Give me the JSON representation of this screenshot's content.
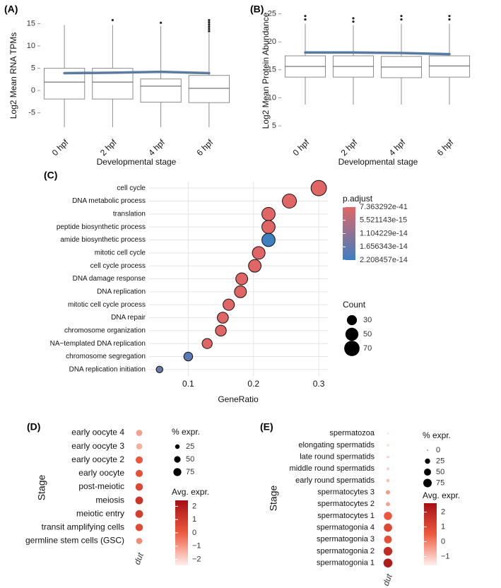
{
  "chart_data": [
    {
      "type": "box",
      "panel_label": "(A)",
      "x_label": "Developmental stage",
      "y_label": "Log2 Mean RNA TPMs",
      "categories": [
        "0 hpf",
        "2 hpf",
        "4 hpf",
        "6 hpf"
      ],
      "boxes": [
        {
          "whisker_low": -8.2,
          "q1": -1.9,
          "median": 1.9,
          "q3": 5.0,
          "whisker_high": 14.7,
          "outliers": []
        },
        {
          "whisker_low": -8.2,
          "q1": -1.9,
          "median": 1.9,
          "q3": 5.0,
          "whisker_high": 14.7,
          "outliers": [
            15.8
          ]
        },
        {
          "whisker_low": -8.2,
          "q1": -2.6,
          "median": 1.0,
          "q3": 2.6,
          "whisker_high": 14.5,
          "outliers": [
            15.2
          ]
        },
        {
          "whisker_low": -8.2,
          "q1": -2.7,
          "median": 0.5,
          "q3": 3.4,
          "whisker_high": 12.9,
          "outliers": [
            13.3,
            13.8,
            14.3,
            14.8,
            15.3,
            15.8
          ]
        }
      ],
      "box_stroke": "#8c8c8c",
      "trend": {
        "values": [
          3.9,
          4.0,
          4.2,
          3.9
        ],
        "color": "#5b7ba1"
      },
      "ylim": [
        -9.8,
        16.5
      ],
      "yticks": [
        -5,
        0,
        5,
        10,
        15
      ]
    },
    {
      "type": "box",
      "panel_label": "(B)",
      "x_label": "Developmental stage",
      "y_label": "Log2 Mean Protein Abundance",
      "categories": [
        "0 hpf",
        "2 hpf",
        "4 hpf",
        "6 hpf"
      ],
      "boxes": [
        {
          "whisker_low": 8.8,
          "q1": 13.7,
          "median": 15.6,
          "q3": 17.5,
          "whisker_high": 23.2,
          "outliers": [
            24.0,
            24.6
          ]
        },
        {
          "whisker_low": 8.8,
          "q1": 13.7,
          "median": 15.6,
          "q3": 17.5,
          "whisker_high": 23.0,
          "outliers": [
            23.6,
            24.2
          ]
        },
        {
          "whisker_low": 8.8,
          "q1": 13.6,
          "median": 15.5,
          "q3": 17.4,
          "whisker_high": 23.2,
          "outliers": [
            24.0,
            24.6
          ]
        },
        {
          "whisker_low": 8.8,
          "q1": 13.7,
          "median": 15.7,
          "q3": 17.5,
          "whisker_high": 23.2,
          "outliers": [
            24.0,
            24.6
          ]
        }
      ],
      "box_stroke": "#8c8c8c",
      "trend": {
        "values": [
          18.1,
          18.1,
          18.0,
          17.8
        ],
        "color": "#587ba3"
      },
      "ylim": [
        3.5,
        26.2
      ],
      "yticks": [
        5,
        10,
        15,
        20,
        25
      ]
    },
    {
      "type": "dotplot",
      "panel_label": "(C)",
      "x_label": "GeneRatio",
      "categories": [
        "cell cycle",
        "DNA metabolic process",
        "translation",
        "peptide biosynthetic process",
        "amide biosynthetic process",
        "mitotic cell cycle",
        "cell cycle process",
        "DNA damage response",
        "DNA replication",
        "mitotic cell cycle process",
        "DNA repair",
        "chromosome organization",
        "NA−templated DNA replication",
        "chromosome segregation",
        "DNA replication initiation"
      ],
      "x": [
        0.3,
        0.255,
        0.223,
        0.223,
        0.223,
        0.208,
        0.202,
        0.182,
        0.18,
        0.162,
        0.153,
        0.15,
        0.129,
        0.1,
        0.056
      ],
      "count": [
        70,
        59,
        52,
        52,
        52,
        48,
        47,
        42,
        42,
        38,
        36,
        35,
        30,
        23,
        13
      ],
      "p_adjust": [
        1e-20,
        1e-20,
        1e-20,
        1e-20,
        2.19e-14,
        1e-20,
        1e-20,
        1e-20,
        1e-20,
        1e-20,
        1e-20,
        1e-20,
        1e-20,
        1.85e-14,
        1.6e-14
      ],
      "xlim": [
        0.04,
        0.314
      ],
      "xticks": [
        0.1,
        0.2,
        0.3
      ],
      "grid": true,
      "colorbar": {
        "title": "p.adjust",
        "lim": [
          7.363292e-41,
          2.208457e-14
        ],
        "ticks": [
          7.363292e-41,
          5.521143e-15,
          1.104229e-14,
          1.656343e-14,
          2.208457e-14
        ],
        "colors": [
          "#e06666",
          "#3d7fc1"
        ]
      },
      "size_legend": {
        "title": "Count",
        "values": [
          30,
          50,
          70
        ]
      }
    },
    {
      "type": "expression_dot",
      "panel_label": "(D)",
      "y_label": "Stage",
      "x_categories": [
        "dut"
      ],
      "categories": [
        "early oocyte 4",
        "early oocyte 3",
        "early oocyte 2",
        "early oocyte",
        "post-meiotic",
        "meiosis",
        "meiotic entry",
        "transit amplifying cells",
        "germline stem cells (GSC)"
      ],
      "pct_expr": [
        45,
        45,
        60,
        60,
        65,
        70,
        70,
        65,
        45
      ],
      "avg_expr": [
        -1.1,
        -1.4,
        0.1,
        0.3,
        0.6,
        1.2,
        0.9,
        0.5,
        -0.8
      ],
      "size_legend": {
        "title": "% expr.",
        "values": [
          25,
          50,
          75
        ]
      },
      "colorbar": {
        "title": "Avg. expr.",
        "lim": [
          -2.45,
          2.45
        ],
        "ticks": [
          2,
          1,
          0,
          {
            "value": -1,
            "label": "−1"
          },
          {
            "value": -2,
            "label": "−2"
          }
        ],
        "colors": [
          "#fff0eb",
          "#ee5a3e",
          "#a50f15"
        ]
      }
    },
    {
      "type": "expression_dot",
      "panel_label": "(E)",
      "y_label": "Stage",
      "x_categories": [
        "dut"
      ],
      "categories": [
        "spermatozoa",
        "elongating spermatids",
        "late round spermatids",
        "middle round spermatids",
        "early round spermatids",
        "spermatocytes 3",
        "spermatocytes 2",
        "spermatocytes 1",
        "spermatogonia 4",
        "spermatogonia 3",
        "spermatogonia 2",
        "spermatogonia 1"
      ],
      "pct_expr": [
        2,
        3,
        4,
        5,
        8,
        15,
        14,
        70,
        72,
        62,
        80,
        85
      ],
      "avg_expr": [
        -1.4,
        -1.3,
        -1.2,
        -1.1,
        -0.9,
        -0.4,
        -0.5,
        0.6,
        1.0,
        0.8,
        1.8,
        2.3
      ],
      "size_legend": {
        "title": "% expr.",
        "values": [
          0,
          25,
          50,
          75
        ]
      },
      "colorbar": {
        "title": "Avg. expr.",
        "lim": [
          -1.6,
          2.6
        ],
        "ticks": [
          2,
          1,
          0,
          {
            "value": -1,
            "label": "−1"
          }
        ],
        "colors": [
          "#fff0eb",
          "#ee5a3e",
          "#a50f15"
        ]
      }
    }
  ]
}
